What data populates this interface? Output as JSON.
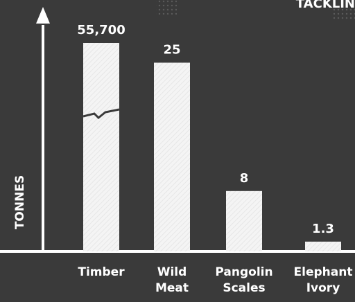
{
  "header_text": "TACKLIN",
  "chart_data": {
    "type": "bar",
    "title": "",
    "ylabel": "TONNES",
    "xlabel": "",
    "categories": [
      "Timber",
      "Wild Meat",
      "Pangolin Scales",
      "Elephant Ivory"
    ],
    "category_lines": [
      [
        "Timber"
      ],
      [
        "Wild",
        "Meat"
      ],
      [
        "Pangolin",
        "Scales"
      ],
      [
        "Elephant",
        "Ivory"
      ]
    ],
    "values": [
      55700,
      25,
      8,
      1.3
    ],
    "value_labels": [
      "55,700",
      "25",
      "8",
      "1.3"
    ],
    "axis_break_on": "Timber",
    "colors": {
      "background": "#3a3a3a",
      "bar": "#f4f4f4",
      "axis": "#ffffff",
      "text": "#ffffff"
    }
  }
}
